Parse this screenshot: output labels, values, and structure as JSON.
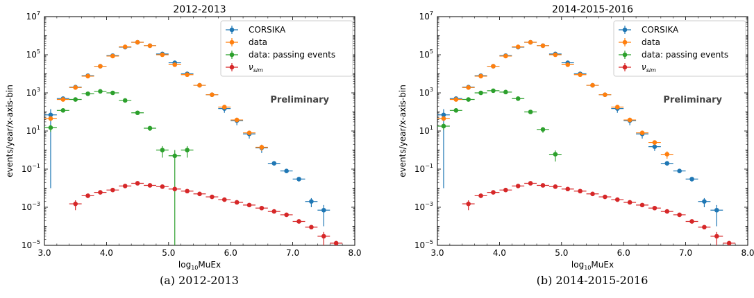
{
  "colors": {
    "CORSIKA": "#1f77b4",
    "data": "#ff7f0e",
    "data_passing": "#2ca02c",
    "nu_sim": "#d62728",
    "preliminary_text": "#444444"
  },
  "chart_data": [
    {
      "type": "scatter",
      "title": "2012-2013",
      "caption": "(a) 2012-2013",
      "annotation": "Preliminary",
      "xlabel_main": "log",
      "xlabel_sub": "10",
      "xlabel_rest": "MuEx",
      "ylabel": "events/year/x-axis-bin",
      "xlim": [
        3.0,
        8.0
      ],
      "ylim": [
        1e-05,
        10000000.0
      ],
      "yscale": "log",
      "xticks": [
        3.0,
        4.0,
        5.0,
        6.0,
        7.0,
        8.0
      ],
      "xtick_labels": [
        "3.0",
        "4.0",
        "5.0",
        "6.0",
        "7.0",
        "8.0"
      ],
      "yticks": [
        1e-05,
        0.001,
        0.1,
        10.0,
        1000.0,
        100000.0,
        10000000.0
      ],
      "ytick_base": "10",
      "ytick_exps": [
        "−5",
        "−3",
        "−1",
        "1",
        "3",
        "5",
        "7"
      ],
      "legend_position": "top-right",
      "series": [
        {
          "name": "CORSIKA",
          "key": "CORSIKA",
          "x": [
            3.1,
            3.3,
            3.5,
            3.7,
            3.9,
            4.1,
            4.3,
            4.5,
            4.7,
            4.9,
            5.1,
            5.3,
            5.5,
            5.7,
            5.9,
            6.1,
            6.3,
            6.5,
            6.7,
            6.9,
            7.1,
            7.3,
            7.5
          ],
          "y": [
            70,
            500,
            2000,
            8000,
            25000,
            90000,
            250000,
            450000,
            300000,
            110000,
            38000,
            10000,
            2500,
            800,
            150,
            35,
            7,
            1.3,
            0.2,
            0.08,
            0.03,
            0.002,
            0.0007
          ],
          "yerr_low": [
            69.99,
            60,
            150,
            400,
            1000,
            2500,
            4000,
            5000,
            4000,
            2500,
            1500,
            800,
            300,
            150,
            60,
            15,
            3,
            0.6,
            0.04,
            0.015,
            0.008,
            0.001,
            0.0006
          ]
        },
        {
          "name": "data",
          "key": "data",
          "x": [
            3.1,
            3.3,
            3.5,
            3.7,
            3.9,
            4.1,
            4.3,
            4.5,
            4.7,
            4.9,
            5.1,
            5.3,
            5.5,
            5.7,
            5.9,
            6.1,
            6.3,
            6.5
          ],
          "y": [
            45,
            450,
            1900,
            7500,
            25000,
            85000,
            260000,
            450000,
            300000,
            100000,
            30000,
            9000,
            2500,
            800,
            180,
            38,
            8,
            1.4
          ],
          "yerr_low": [
            10,
            40,
            80,
            150,
            300,
            500,
            800,
            1000,
            800,
            500,
            300,
            150,
            80,
            40,
            20,
            9,
            2,
            0.5
          ]
        },
        {
          "name": "data: passing events",
          "key": "data_passing",
          "x": [
            3.1,
            3.3,
            3.5,
            3.7,
            3.9,
            4.1,
            4.3,
            4.5,
            4.7,
            4.9,
            5.1,
            5.3
          ],
          "y": [
            15,
            120,
            450,
            900,
            1200,
            1000,
            400,
            90,
            14,
            1,
            0.5,
            1
          ],
          "yerr_low": [
            6,
            15,
            30,
            40,
            50,
            45,
            25,
            12,
            4,
            0.6,
            0.49999,
            0.6
          ]
        },
        {
          "name": "ν_sim",
          "key": "nu_sim",
          "x": [
            3.5,
            3.7,
            3.9,
            4.1,
            4.3,
            4.5,
            4.7,
            4.9,
            5.1,
            5.3,
            5.5,
            5.7,
            5.9,
            6.1,
            6.3,
            6.5,
            6.7,
            6.9,
            7.1,
            7.3,
            7.5,
            7.7
          ],
          "y": [
            0.0015,
            0.004,
            0.006,
            0.008,
            0.013,
            0.018,
            0.014,
            0.012,
            0.009,
            0.007,
            0.005,
            0.0035,
            0.0025,
            0.0018,
            0.0013,
            0.0009,
            0.0006,
            0.0004,
            0.00018,
            9e-05,
            3e-05,
            1.3e-05
          ],
          "yerr_low": [
            0.0008,
            0.001,
            0.001,
            0.001,
            0.0015,
            0.002,
            0.0015,
            0.0012,
            0.0009,
            0.0007,
            0.0005,
            0.0003,
            0.0002,
            0.00015,
            0.0001,
            8e-05,
            5e-05,
            3e-05,
            2e-05,
            1e-05,
            2e-05,
            4e-06
          ]
        }
      ]
    },
    {
      "type": "scatter",
      "title": "2014-2015-2016",
      "caption": "(b) 2014-2015-2016",
      "annotation": "Preliminary",
      "xlabel_main": "log",
      "xlabel_sub": "10",
      "xlabel_rest": "MuEx",
      "ylabel": "events/year/x-axis-bin",
      "xlim": [
        3.0,
        8.0
      ],
      "ylim": [
        1e-05,
        10000000.0
      ],
      "yscale": "log",
      "xticks": [
        3.0,
        4.0,
        5.0,
        6.0,
        7.0,
        8.0
      ],
      "xtick_labels": [
        "3.0",
        "4.0",
        "5.0",
        "6.0",
        "7.0",
        "8.0"
      ],
      "yticks": [
        1e-05,
        0.001,
        0.1,
        10.0,
        1000.0,
        100000.0,
        10000000.0
      ],
      "ytick_base": "10",
      "ytick_exps": [
        "−5",
        "−3",
        "−1",
        "1",
        "3",
        "5",
        "7"
      ],
      "legend_position": "top-right",
      "series": [
        {
          "name": "CORSIKA",
          "key": "CORSIKA",
          "x": [
            3.1,
            3.3,
            3.5,
            3.7,
            3.9,
            4.1,
            4.3,
            4.5,
            4.7,
            4.9,
            5.1,
            5.3,
            5.5,
            5.7,
            5.9,
            6.1,
            6.3,
            6.5,
            6.7,
            6.9,
            7.1,
            7.3,
            7.5
          ],
          "y": [
            70,
            500,
            2000,
            8000,
            25000,
            90000,
            250000,
            450000,
            300000,
            110000,
            38000,
            10000,
            2500,
            800,
            150,
            35,
            7,
            1.5,
            0.2,
            0.08,
            0.03,
            0.002,
            0.0007
          ],
          "yerr_low": [
            69.99,
            60,
            150,
            400,
            1000,
            2500,
            4000,
            5000,
            4000,
            2500,
            1500,
            800,
            300,
            150,
            60,
            15,
            3,
            0.6,
            0.04,
            0.015,
            0.008,
            0.001,
            0.0006
          ]
        },
        {
          "name": "data",
          "key": "data",
          "x": [
            3.1,
            3.3,
            3.5,
            3.7,
            3.9,
            4.1,
            4.3,
            4.5,
            4.7,
            4.9,
            5.1,
            5.3,
            5.5,
            5.7,
            5.9,
            6.1,
            6.3,
            6.5,
            6.7
          ],
          "y": [
            45,
            450,
            1900,
            7500,
            25000,
            85000,
            260000,
            450000,
            300000,
            100000,
            30000,
            9000,
            2500,
            800,
            180,
            38,
            8,
            2.5,
            0.6
          ],
          "yerr_low": [
            10,
            40,
            80,
            150,
            300,
            500,
            800,
            1000,
            800,
            500,
            300,
            150,
            80,
            40,
            20,
            9,
            2,
            0.7,
            0.25
          ]
        },
        {
          "name": "data: passing events",
          "key": "data_passing",
          "x": [
            3.1,
            3.3,
            3.5,
            3.7,
            3.9,
            4.1,
            4.3,
            4.5,
            4.7,
            4.9
          ],
          "y": [
            18,
            120,
            450,
            1000,
            1300,
            1100,
            500,
            100,
            12,
            0.6
          ],
          "yerr_low": [
            7,
            15,
            30,
            40,
            50,
            45,
            25,
            12,
            4,
            0.35
          ]
        },
        {
          "name": "ν_sim",
          "key": "nu_sim",
          "x": [
            3.5,
            3.7,
            3.9,
            4.1,
            4.3,
            4.5,
            4.7,
            4.9,
            5.1,
            5.3,
            5.5,
            5.7,
            5.9,
            6.1,
            6.3,
            6.5,
            6.7,
            6.9,
            7.1,
            7.3,
            7.5,
            7.7
          ],
          "y": [
            0.0015,
            0.004,
            0.006,
            0.008,
            0.013,
            0.018,
            0.014,
            0.012,
            0.009,
            0.007,
            0.005,
            0.0035,
            0.0025,
            0.0018,
            0.0013,
            0.0009,
            0.0006,
            0.0004,
            0.00018,
            9e-05,
            3e-05,
            1.3e-05
          ],
          "yerr_low": [
            0.0008,
            0.001,
            0.001,
            0.001,
            0.0015,
            0.002,
            0.0015,
            0.0012,
            0.0009,
            0.0007,
            0.0005,
            0.0003,
            0.0002,
            0.00015,
            0.0001,
            8e-05,
            5e-05,
            3e-05,
            2e-05,
            1e-05,
            2e-05,
            4e-06
          ]
        }
      ]
    }
  ]
}
